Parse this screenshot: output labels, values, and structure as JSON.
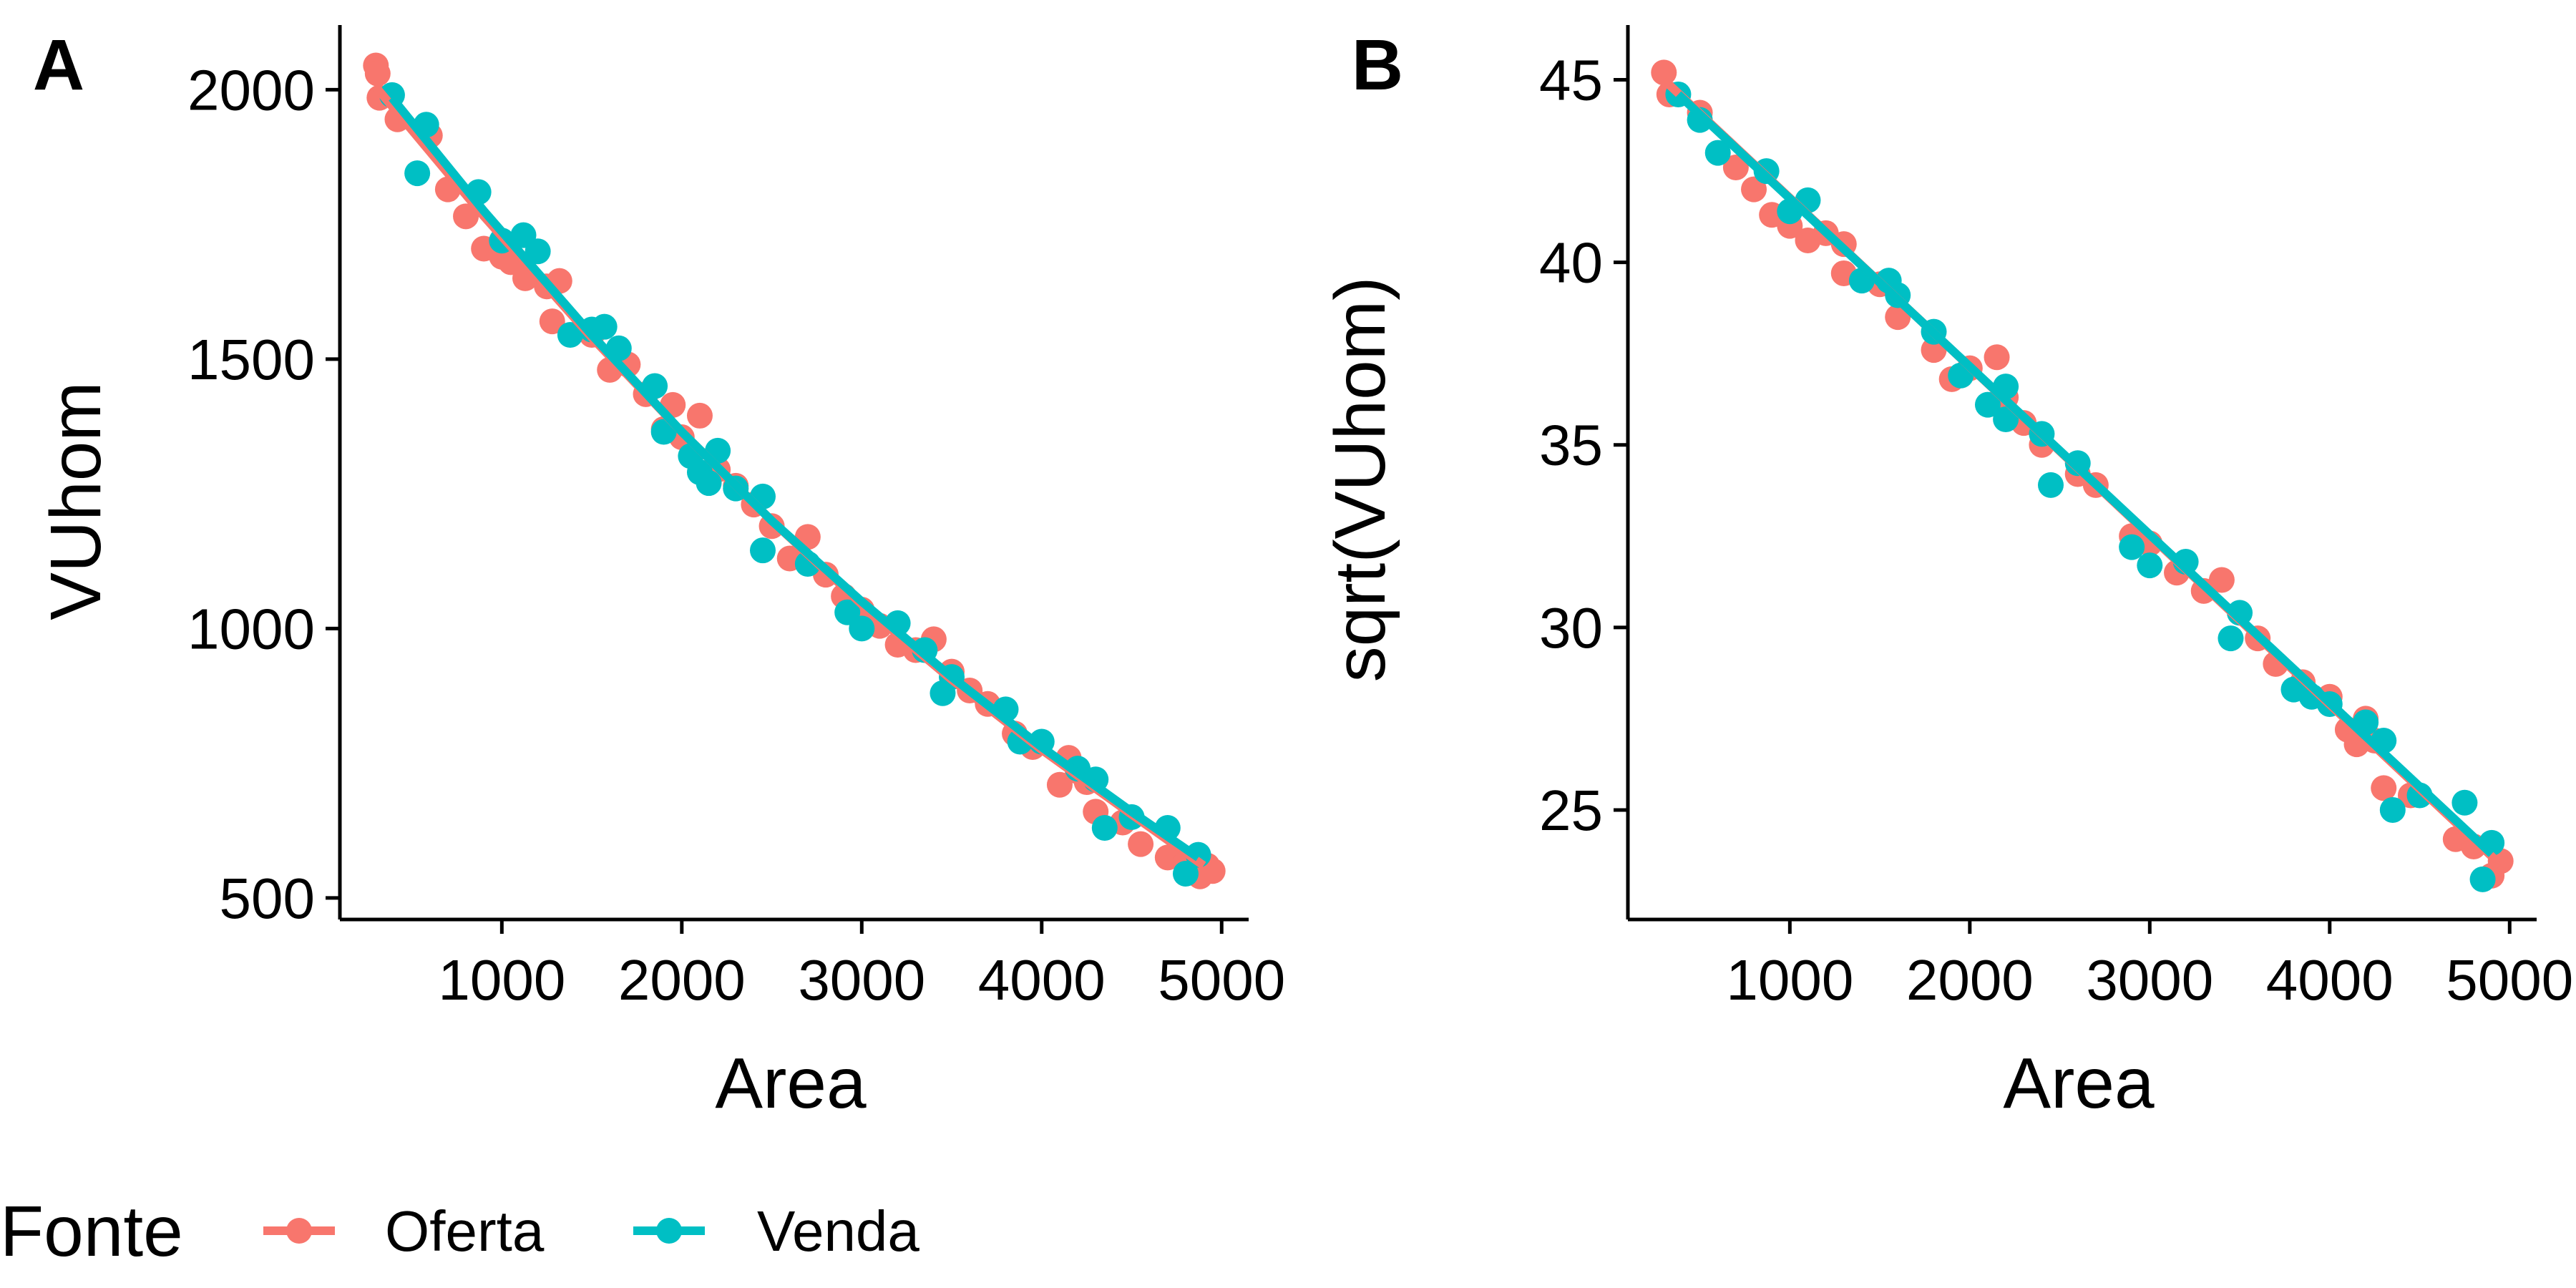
{
  "colors": {
    "Oferta": "#F8766D",
    "Venda": "#00BFC4"
  },
  "legend": {
    "title": "Fonte",
    "items": [
      {
        "name": "Oferta",
        "color": "#F8766D"
      },
      {
        "name": "Venda",
        "color": "#00BFC4"
      }
    ]
  },
  "chart_data": [
    {
      "type": "scatter",
      "tag": "A",
      "xlabel": "Area",
      "ylabel": "VUhom",
      "xlim": [
        100,
        5150
      ],
      "ylim": [
        460,
        2120
      ],
      "xticks": [
        1000,
        2000,
        3000,
        4000,
        5000
      ],
      "yticks": [
        500,
        1000,
        1500,
        2000
      ],
      "grid": false,
      "legend": "bottom",
      "series": [
        {
          "name": "Oferta",
          "color": "#F8766D",
          "points": [
            [
              300,
              2045
            ],
            [
              310,
              2030
            ],
            [
              320,
              1985
            ],
            [
              420,
              1945
            ],
            [
              600,
              1915
            ],
            [
              700,
              1815
            ],
            [
              800,
              1765
            ],
            [
              900,
              1705
            ],
            [
              1000,
              1690
            ],
            [
              1050,
              1680
            ],
            [
              1130,
              1650
            ],
            [
              1250,
              1635
            ],
            [
              1320,
              1645
            ],
            [
              1280,
              1570
            ],
            [
              1500,
              1545
            ],
            [
              1600,
              1480
            ],
            [
              1700,
              1490
            ],
            [
              1800,
              1435
            ],
            [
              1900,
              1370
            ],
            [
              1950,
              1415
            ],
            [
              2000,
              1355
            ],
            [
              2100,
              1395
            ],
            [
              2200,
              1295
            ],
            [
              2300,
              1265
            ],
            [
              2400,
              1230
            ],
            [
              2500,
              1190
            ],
            [
              2600,
              1130
            ],
            [
              2700,
              1170
            ],
            [
              2800,
              1100
            ],
            [
              2900,
              1060
            ],
            [
              3000,
              1035
            ],
            [
              3100,
              1005
            ],
            [
              3200,
              970
            ],
            [
              3300,
              960
            ],
            [
              3400,
              980
            ],
            [
              3500,
              920
            ],
            [
              3600,
              885
            ],
            [
              3700,
              860
            ],
            [
              3850,
              805
            ],
            [
              3950,
              780
            ],
            [
              4100,
              710
            ],
            [
              4150,
              760
            ],
            [
              4200,
              735
            ],
            [
              4250,
              715
            ],
            [
              4300,
              660
            ],
            [
              4450,
              640
            ],
            [
              4550,
              600
            ],
            [
              4700,
              575
            ],
            [
              4800,
              565
            ],
            [
              4880,
              540
            ],
            [
              4920,
              560
            ],
            [
              4950,
              550
            ]
          ]
        },
        {
          "name": "Venda",
          "color": "#00BFC4",
          "points": [
            [
              390,
              1990
            ],
            [
              580,
              1935
            ],
            [
              530,
              1845
            ],
            [
              870,
              1810
            ],
            [
              1000,
              1720
            ],
            [
              1120,
              1730
            ],
            [
              1200,
              1700
            ],
            [
              1380,
              1545
            ],
            [
              1500,
              1555
            ],
            [
              1570,
              1560
            ],
            [
              1650,
              1520
            ],
            [
              1850,
              1450
            ],
            [
              1900,
              1365
            ],
            [
              2050,
              1320
            ],
            [
              2100,
              1290
            ],
            [
              2150,
              1270
            ],
            [
              2200,
              1330
            ],
            [
              2300,
              1260
            ],
            [
              2450,
              1245
            ],
            [
              2450,
              1145
            ],
            [
              2700,
              1120
            ],
            [
              2920,
              1030
            ],
            [
              3000,
              1000
            ],
            [
              3200,
              1010
            ],
            [
              3350,
              960
            ],
            [
              3450,
              880
            ],
            [
              3500,
              910
            ],
            [
              3800,
              850
            ],
            [
              3880,
              790
            ],
            [
              4000,
              790
            ],
            [
              4200,
              740
            ],
            [
              4300,
              720
            ],
            [
              4350,
              630
            ],
            [
              4500,
              650
            ],
            [
              4700,
              630
            ],
            [
              4800,
              545
            ],
            [
              4870,
              580
            ]
          ]
        }
      ],
      "fit_lines": [
        {
          "name": "Oferta",
          "x": [
            300,
            900,
            1500,
            2000,
            2500,
            3000,
            3500,
            4000,
            4500,
            4900
          ],
          "y": [
            2005,
            1765,
            1540,
            1365,
            1200,
            1045,
            905,
            775,
            655,
            560
          ]
        },
        {
          "name": "Venda",
          "x": [
            390,
            900,
            1500,
            2000,
            2500,
            3000,
            3500,
            4000,
            4500,
            4870
          ],
          "y": [
            1985,
            1775,
            1545,
            1365,
            1200,
            1050,
            910,
            780,
            660,
            575
          ]
        }
      ]
    },
    {
      "type": "scatter",
      "tag": "B",
      "xlabel": "Area",
      "ylabel": "sqrt(VUhom)",
      "xlim": [
        100,
        5150
      ],
      "ylim": [
        22.0,
        46.5
      ],
      "xticks": [
        1000,
        2000,
        3000,
        4000,
        5000
      ],
      "yticks": [
        25,
        30,
        35,
        40,
        45
      ],
      "grid": false,
      "legend": "bottom",
      "series": [
        {
          "name": "Oferta",
          "color": "#F8766D",
          "points": [
            [
              300,
              45.2
            ],
            [
              330,
              44.6
            ],
            [
              500,
              44.1
            ],
            [
              700,
              42.6
            ],
            [
              800,
              42.0
            ],
            [
              900,
              41.3
            ],
            [
              1000,
              41.0
            ],
            [
              1100,
              40.6
            ],
            [
              1200,
              40.8
            ],
            [
              1300,
              40.5
            ],
            [
              1300,
              39.7
            ],
            [
              1500,
              39.4
            ],
            [
              1600,
              38.5
            ],
            [
              1800,
              37.6
            ],
            [
              1900,
              36.8
            ],
            [
              2000,
              37.1
            ],
            [
              2150,
              37.4
            ],
            [
              2200,
              36.3
            ],
            [
              2300,
              35.6
            ],
            [
              2400,
              35.0
            ],
            [
              2600,
              34.2
            ],
            [
              2700,
              33.9
            ],
            [
              2900,
              32.5
            ],
            [
              3000,
              32.3
            ],
            [
              3150,
              31.5
            ],
            [
              3300,
              31.0
            ],
            [
              3400,
              31.3
            ],
            [
              3600,
              29.7
            ],
            [
              3700,
              29.0
            ],
            [
              3850,
              28.5
            ],
            [
              4000,
              28.1
            ],
            [
              4100,
              27.2
            ],
            [
              4150,
              26.8
            ],
            [
              4200,
              27.5
            ],
            [
              4250,
              26.9
            ],
            [
              4300,
              25.6
            ],
            [
              4450,
              25.4
            ],
            [
              4700,
              24.2
            ],
            [
              4800,
              24.0
            ],
            [
              4900,
              23.2
            ],
            [
              4950,
              23.6
            ]
          ]
        },
        {
          "name": "Venda",
          "color": "#00BFC4",
          "points": [
            [
              380,
              44.6
            ],
            [
              500,
              43.9
            ],
            [
              600,
              43.0
            ],
            [
              870,
              42.5
            ],
            [
              1000,
              41.4
            ],
            [
              1100,
              41.7
            ],
            [
              1400,
              39.5
            ],
            [
              1550,
              39.5
            ],
            [
              1600,
              39.1
            ],
            [
              1800,
              38.1
            ],
            [
              1950,
              36.9
            ],
            [
              2100,
              36.1
            ],
            [
              2200,
              36.6
            ],
            [
              2200,
              35.7
            ],
            [
              2400,
              35.3
            ],
            [
              2450,
              33.9
            ],
            [
              2600,
              34.5
            ],
            [
              2900,
              32.2
            ],
            [
              3000,
              31.7
            ],
            [
              3200,
              31.8
            ],
            [
              3450,
              29.7
            ],
            [
              3500,
              30.4
            ],
            [
              3800,
              28.3
            ],
            [
              3900,
              28.1
            ],
            [
              4000,
              27.9
            ],
            [
              4200,
              27.4
            ],
            [
              4300,
              26.9
            ],
            [
              4350,
              25.0
            ],
            [
              4500,
              25.4
            ],
            [
              4750,
              25.2
            ],
            [
              4850,
              23.1
            ],
            [
              4900,
              24.1
            ]
          ]
        }
      ],
      "fit_lines": [
        {
          "name": "Oferta",
          "x": [
            300,
            4950
          ],
          "y": [
            45.0,
            23.5
          ]
        },
        {
          "name": "Venda",
          "x": [
            380,
            4900
          ],
          "y": [
            44.6,
            23.8
          ]
        }
      ]
    }
  ]
}
